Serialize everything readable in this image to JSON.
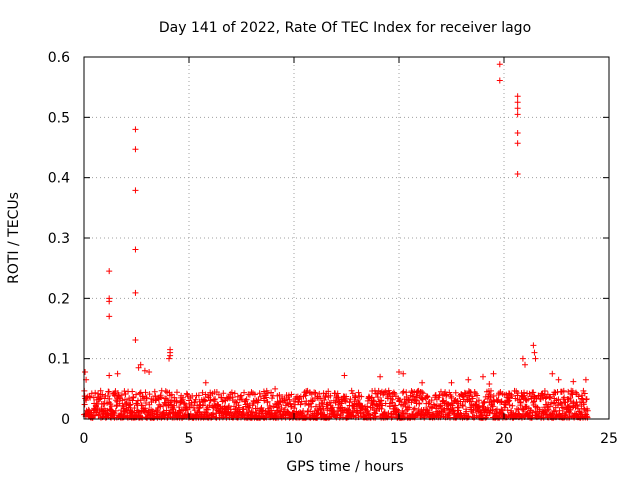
{
  "chart_data": {
    "type": "scatter",
    "title": "Day 141 of 2022, Rate Of TEC Index for receiver lago",
    "xlabel": "GPS time / hours",
    "ylabel": "ROTI / TECUs",
    "xlim": [
      0,
      25
    ],
    "ylim": [
      0,
      0.6
    ],
    "xticks": [
      0,
      5,
      10,
      15,
      20,
      25
    ],
    "xtick_labels": [
      "0",
      "5",
      "10",
      "15",
      "20",
      "25"
    ],
    "yticks": [
      0,
      0.1,
      0.2,
      0.3,
      0.4,
      0.5,
      0.6
    ],
    "ytick_labels": [
      "0",
      "0.1",
      "0.2",
      "0.3",
      "0.4",
      "0.5",
      "0.6"
    ],
    "grid": true,
    "marker": "+",
    "marker_color": "#ff0000",
    "series": [
      {
        "name": "ROTI",
        "points": [
          [
            1.2,
            0.245
          ],
          [
            1.2,
            0.2
          ],
          [
            1.2,
            0.195
          ],
          [
            1.2,
            0.17
          ],
          [
            1.2,
            0.072
          ],
          [
            2.45,
            0.48
          ],
          [
            2.45,
            0.447
          ],
          [
            2.45,
            0.379
          ],
          [
            2.45,
            0.281
          ],
          [
            2.45,
            0.209
          ],
          [
            2.45,
            0.131
          ],
          [
            2.6,
            0.085
          ],
          [
            2.7,
            0.09
          ],
          [
            2.9,
            0.08
          ],
          [
            3.1,
            0.078
          ],
          [
            4.1,
            0.115
          ],
          [
            4.1,
            0.11
          ],
          [
            4.1,
            0.105
          ],
          [
            4.05,
            0.1
          ],
          [
            19.8,
            0.588
          ],
          [
            19.8,
            0.561
          ],
          [
            20.65,
            0.535
          ],
          [
            20.65,
            0.525
          ],
          [
            20.65,
            0.515
          ],
          [
            20.65,
            0.505
          ],
          [
            20.65,
            0.474
          ],
          [
            20.65,
            0.457
          ],
          [
            20.65,
            0.406
          ],
          [
            20.9,
            0.1
          ],
          [
            21.0,
            0.09
          ],
          [
            21.4,
            0.122
          ],
          [
            21.45,
            0.11
          ],
          [
            21.5,
            0.1
          ],
          [
            0.05,
            0.078
          ],
          [
            0.1,
            0.065
          ],
          [
            1.6,
            0.075
          ],
          [
            5.8,
            0.06
          ],
          [
            9.1,
            0.05
          ],
          [
            12.4,
            0.072
          ],
          [
            14.1,
            0.07
          ],
          [
            15.0,
            0.078
          ],
          [
            15.2,
            0.075
          ],
          [
            16.1,
            0.06
          ],
          [
            17.5,
            0.06
          ],
          [
            18.3,
            0.065
          ],
          [
            19.0,
            0.07
          ],
          [
            19.5,
            0.075
          ],
          [
            19.3,
            0.058
          ],
          [
            22.3,
            0.075
          ],
          [
            22.6,
            0.065
          ],
          [
            23.3,
            0.062
          ],
          [
            23.9,
            0.065
          ]
        ],
        "background_band": {
          "description_values": "dense noise floor across 0-24 h",
          "x_range": [
            0,
            24
          ],
          "typical_max": 0.045,
          "typical_min": 0.002
        }
      }
    ]
  }
}
